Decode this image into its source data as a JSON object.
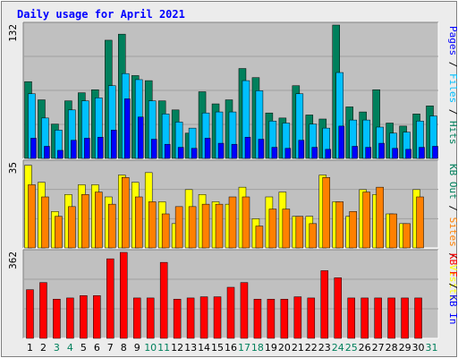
{
  "chart_data": {
    "type": "bar",
    "title": "Daily usage for April 2021",
    "colors": {
      "background": "#ececec",
      "panel": "#c0c0c0",
      "title": "#0000ff",
      "hits": "#00805c",
      "files": "#00c0ff",
      "pages": "#0000ff",
      "visits": "#ffff00",
      "sites": "#ff8000",
      "kbytes": "#ff0000",
      "weekday": "#000000",
      "weekend": "#00805c"
    },
    "x": [
      "1",
      "2",
      "3",
      "4",
      "5",
      "6",
      "7",
      "8",
      "9",
      "10",
      "11",
      "12",
      "13",
      "14",
      "15",
      "16",
      "17",
      "18",
      "19",
      "20",
      "21",
      "22",
      "23",
      "24",
      "25",
      "26",
      "27",
      "28",
      "29",
      "30",
      "31"
    ],
    "weekend_days": [
      "3",
      "4",
      "10",
      "11",
      "17",
      "18",
      "24",
      "25",
      "31"
    ],
    "panels": [
      {
        "ymax_label": "132",
        "ymax": 132,
        "legend": [
          {
            "text": "Hits",
            "color": "#00805c"
          },
          {
            "text": "Files",
            "color": "#00c0ff"
          },
          {
            "text": "Pages",
            "color": "#0000ff"
          }
        ],
        "series": [
          {
            "name": "Hits",
            "values": [
              76,
              58,
              34,
              57,
              65,
              68,
              117,
              123,
              82,
              77,
              57,
              48,
              25,
              66,
              54,
              58,
              89,
              80,
              45,
              40,
              72,
              43,
              39,
              132,
              51,
              46,
              68,
              35,
              32,
              44,
              52
            ]
          },
          {
            "name": "Files",
            "values": [
              64,
              40,
              28,
              48,
              57,
              60,
              72,
              84,
              78,
              57,
              44,
              36,
              30,
              45,
              46,
              46,
              77,
              67,
              37,
              35,
              64,
              34,
              30,
              85,
              38,
              38,
              31,
              25,
              26,
              37,
              42
            ]
          },
          {
            "name": "Pages",
            "values": [
              20,
              12,
              8,
              18,
              20,
              21,
              28,
              59,
              41,
              19,
              14,
              11,
              10,
              20,
              15,
              14,
              21,
              19,
              11,
              10,
              18,
              11,
              9,
              32,
              12,
              11,
              15,
              10,
              9,
              11,
              12
            ]
          }
        ]
      },
      {
        "ymax_label": "35",
        "ymax": 35,
        "legend": [
          {
            "text": "Visits",
            "color": "#ffff00"
          },
          {
            "text": "Sites",
            "color": "#ff8000"
          },
          {
            "text": "KB Out",
            "color": "#00805c"
          }
        ],
        "series": [
          {
            "name": "Visits",
            "values": [
              34,
              27,
              15,
              22,
              26,
              26,
              21,
              30,
              27,
              31,
              19,
              10,
              24,
              22,
              19,
              18,
              25,
              12,
              21,
              23,
              13,
              13,
              30,
              19,
              13,
              24,
              22,
              14,
              10,
              24,
              0
            ]
          },
          {
            "name": "Sites",
            "values": [
              26,
              21,
              13,
              17,
              22,
              23,
              18,
              29,
              21,
              19,
              14,
              17,
              17,
              18,
              18,
              21,
              21,
              9,
              16,
              16,
              13,
              10,
              29,
              19,
              15,
              23,
              25,
              14,
              10,
              21,
              0
            ]
          }
        ]
      },
      {
        "ymax_label": "362",
        "ymax": 362,
        "legend": [
          {
            "text": "KB In",
            "color": "#0000ff"
          },
          {
            "text": "KB F",
            "color": "#ff0000"
          }
        ],
        "series": [
          {
            "name": "KB F",
            "values": [
              205,
              235,
              165,
              170,
              180,
              180,
              335,
              362,
              170,
              170,
              320,
              165,
              170,
              175,
              175,
              215,
              235,
              165,
              165,
              165,
              175,
              170,
              285,
              255,
              170,
              170,
              170,
              170,
              170,
              170,
              0
            ]
          }
        ]
      }
    ]
  }
}
